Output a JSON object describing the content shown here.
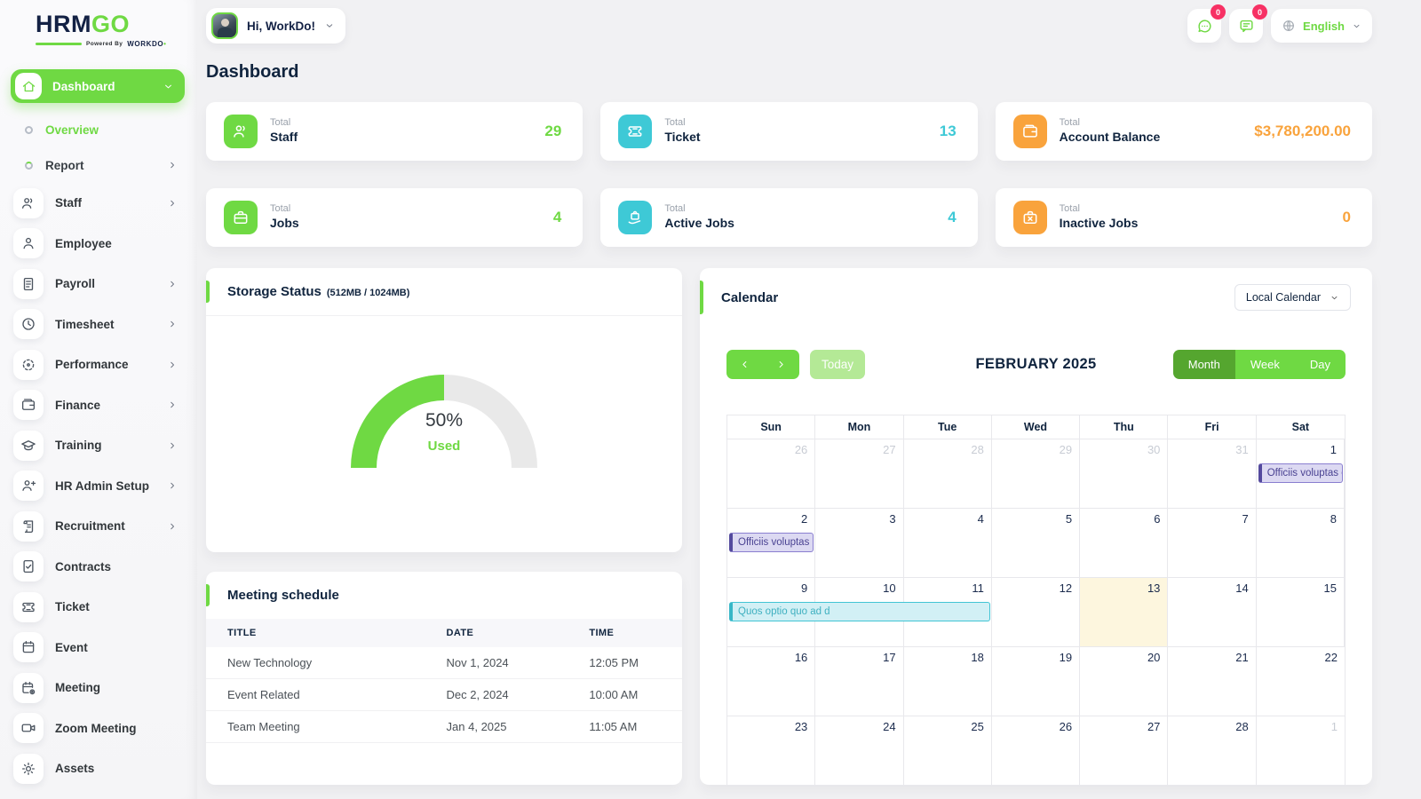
{
  "brand": {
    "name_main": "HRM",
    "name_accent": "GO",
    "powered_by": "Powered By",
    "powered_brand": "WORKDO"
  },
  "topbar": {
    "greeting": "Hi, WorkDo!",
    "chat_badge": "0",
    "message_badge": "0",
    "language": "English"
  },
  "colors": {
    "green": "#6fd943",
    "green_dark": "#55a62f",
    "green_light": "#b4e996",
    "cyan": "#3ec9d6",
    "orange": "#f9a33c",
    "pink_badge": "#f73164",
    "navy_text": "#10243e",
    "today_cell": "#fdf6de",
    "event_purple_bg": "#dcd9f2",
    "event_cyan_bg": "#d2f0f5"
  },
  "sidebar": {
    "items": [
      {
        "label": "Dashboard",
        "icon": "home",
        "style": "pill",
        "chevron": "down"
      },
      {
        "label": "Overview",
        "icon": "dot",
        "style": "sub",
        "active": true
      },
      {
        "label": "Report",
        "icon": "dot",
        "style": "sub",
        "chevron": "right"
      },
      {
        "label": "Staff",
        "icon": "users",
        "style": "item",
        "chevron": "right"
      },
      {
        "label": "Employee",
        "icon": "user",
        "style": "item"
      },
      {
        "label": "Payroll",
        "icon": "file-invoice",
        "style": "item",
        "chevron": "right"
      },
      {
        "label": "Timesheet",
        "icon": "clock",
        "style": "item",
        "chevron": "right"
      },
      {
        "label": "Performance",
        "icon": "target",
        "style": "item",
        "chevron": "right"
      },
      {
        "label": "Finance",
        "icon": "wallet",
        "style": "item",
        "chevron": "right"
      },
      {
        "label": "Training",
        "icon": "graduation-cap",
        "style": "item",
        "chevron": "right"
      },
      {
        "label": "HR Admin Setup",
        "icon": "user-plus",
        "style": "item",
        "chevron": "right"
      },
      {
        "label": "Recruitment",
        "icon": "scroll",
        "style": "item",
        "chevron": "right"
      },
      {
        "label": "Contracts",
        "icon": "file-check",
        "style": "item"
      },
      {
        "label": "Ticket",
        "icon": "ticket",
        "style": "item"
      },
      {
        "label": "Event",
        "icon": "calendar",
        "style": "item"
      },
      {
        "label": "Meeting",
        "icon": "calendar-gear",
        "style": "item"
      },
      {
        "label": "Zoom Meeting",
        "icon": "video",
        "style": "item"
      },
      {
        "label": "Assets",
        "icon": "gear",
        "style": "item"
      }
    ]
  },
  "page": {
    "title": "Dashboard"
  },
  "stat_cards": [
    {
      "top": "Total",
      "label": "Staff",
      "value": "29",
      "color": "#6fd943",
      "icon": "users"
    },
    {
      "top": "Total",
      "label": "Ticket",
      "value": "13",
      "color": "#3ec9d6",
      "icon": "ticket"
    },
    {
      "top": "Total",
      "label": "Account Balance",
      "value": "$3,780,200.00",
      "color": "#f9a33c",
      "icon": "wallet"
    },
    {
      "top": "Total",
      "label": "Jobs",
      "value": "4",
      "color": "#6fd943",
      "icon": "briefcase"
    },
    {
      "top": "Total",
      "label": "Active Jobs",
      "value": "4",
      "color": "#3ec9d6",
      "icon": "briefcase-hand"
    },
    {
      "top": "Total",
      "label": "Inactive Jobs",
      "value": "0",
      "color": "#f9a33c",
      "icon": "briefcase-x"
    }
  ],
  "storage": {
    "title": "Storage Status",
    "subtitle": "(512MB / 1024MB)",
    "percent_label": "50%",
    "used_label": "Used",
    "chart_data": {
      "type": "gauge",
      "used_mb": 512,
      "total_mb": 1024,
      "percent": 50
    }
  },
  "meeting_schedule": {
    "title": "Meeting schedule",
    "columns": [
      "TITLE",
      "DATE",
      "TIME"
    ],
    "rows": [
      {
        "title": "New Technology",
        "date": "Nov 1, 2024",
        "time": "12:05 PM"
      },
      {
        "title": "Event Related",
        "date": "Dec 2, 2024",
        "time": "10:00 AM"
      },
      {
        "title": "Team Meeting",
        "date": "Jan 4, 2025",
        "time": "11:05 AM"
      }
    ]
  },
  "calendar": {
    "title": "Calendar",
    "select_value": "Local Calendar",
    "today_label": "Today",
    "month_title": "FEBRUARY 2025",
    "views": [
      "Month",
      "Week",
      "Day"
    ],
    "active_view": "Month",
    "day_headers": [
      "Sun",
      "Mon",
      "Tue",
      "Wed",
      "Thu",
      "Fri",
      "Sat"
    ],
    "weeks": [
      [
        {
          "n": "26",
          "muted": true
        },
        {
          "n": "27",
          "muted": true
        },
        {
          "n": "28",
          "muted": true
        },
        {
          "n": "29",
          "muted": true
        },
        {
          "n": "30",
          "muted": true
        },
        {
          "n": "31",
          "muted": true
        },
        {
          "n": "1"
        }
      ],
      [
        {
          "n": "2"
        },
        {
          "n": "3"
        },
        {
          "n": "4"
        },
        {
          "n": "5"
        },
        {
          "n": "6"
        },
        {
          "n": "7"
        },
        {
          "n": "8"
        }
      ],
      [
        {
          "n": "9"
        },
        {
          "n": "10"
        },
        {
          "n": "11"
        },
        {
          "n": "12"
        },
        {
          "n": "13",
          "today": true
        },
        {
          "n": "14"
        },
        {
          "n": "15"
        }
      ],
      [
        {
          "n": "16"
        },
        {
          "n": "17"
        },
        {
          "n": "18"
        },
        {
          "n": "19"
        },
        {
          "n": "20"
        },
        {
          "n": "21"
        },
        {
          "n": "22"
        }
      ],
      [
        {
          "n": "23"
        },
        {
          "n": "24"
        },
        {
          "n": "25"
        },
        {
          "n": "26"
        },
        {
          "n": "27"
        },
        {
          "n": "28"
        },
        {
          "n": "1",
          "muted": true
        }
      ]
    ],
    "events": [
      {
        "week": 0,
        "col": 6,
        "span": 1,
        "text": "Officiis voluptas c",
        "type": "purple"
      },
      {
        "week": 1,
        "col": 0,
        "span": 1,
        "text": "Officiis voluptas c",
        "type": "purple"
      },
      {
        "week": 2,
        "col": 0,
        "span": 3,
        "text": "Quos optio quo ad d",
        "type": "cyan"
      }
    ]
  }
}
